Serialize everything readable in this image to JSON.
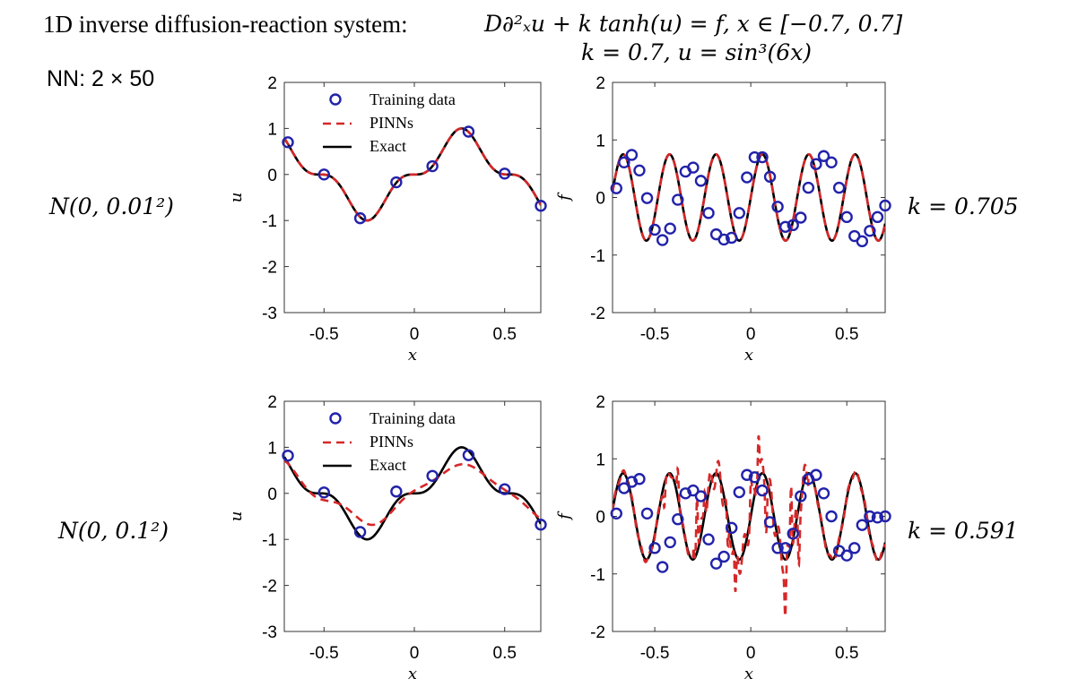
{
  "header": {
    "title": "1D inverse diffusion-reaction system:",
    "equation": "D∂²ₓu + k tanh(u) = f, x ∈ [−0.7, 0.7]",
    "params": "k = 0.7, u = sin³(6x)",
    "network": "NN: 2 × 50"
  },
  "rows": [
    {
      "noise_label": "N(0, 0.01²)",
      "k_result": "k = 0.705"
    },
    {
      "noise_label": "N(0, 0.1²)",
      "k_result": "k = 0.591"
    }
  ],
  "chart_data": [
    {
      "type": "line",
      "id": "u-low-noise",
      "xlabel": "x",
      "ylabel": "u",
      "xlim": [
        -0.72,
        0.7
      ],
      "ylim": [
        -3,
        2
      ],
      "xticks": [
        "-0.5",
        "0",
        "0.5"
      ],
      "yticks": [
        "-3",
        "-2",
        "-1",
        "0",
        "1",
        "2"
      ],
      "legend": [
        "Training data",
        "PINNs",
        "Exact"
      ],
      "legend_position": "top-center",
      "exact": "sin^3(6x)",
      "series": [
        {
          "name": "Training data",
          "x": [
            -0.7,
            -0.5,
            -0.3,
            -0.1,
            0.1,
            0.3,
            0.5,
            0.7
          ],
          "y": [
            0.7,
            0.0,
            -0.95,
            -0.17,
            0.18,
            0.93,
            0.02,
            -0.68
          ]
        }
      ]
    },
    {
      "type": "line",
      "id": "f-low-noise",
      "xlabel": "x",
      "ylabel": "f",
      "xlim": [
        -0.72,
        0.7
      ],
      "ylim": [
        -2,
        2
      ],
      "xticks": [
        "-0.5",
        "0",
        "0.5"
      ],
      "yticks": [
        "-2",
        "-1",
        "0",
        "1",
        "2"
      ],
      "exact": "f(x) ≈ 0.75 sin(26x)",
      "series": [
        {
          "name": "Training data",
          "x": [
            -0.7,
            -0.66,
            -0.62,
            -0.58,
            -0.54,
            -0.5,
            -0.46,
            -0.42,
            -0.38,
            -0.34,
            -0.3,
            -0.26,
            -0.22,
            -0.18,
            -0.14,
            -0.1,
            -0.06,
            -0.02,
            0.02,
            0.06,
            0.1,
            0.14,
            0.18,
            0.22,
            0.26,
            0.3,
            0.34,
            0.38,
            0.42,
            0.46,
            0.5,
            0.54,
            0.58,
            0.62,
            0.66,
            0.7
          ],
          "y": [
            0.16,
            0.61,
            0.74,
            0.47,
            -0.01,
            -0.56,
            -0.74,
            -0.54,
            -0.04,
            0.45,
            0.52,
            0.29,
            -0.27,
            -0.64,
            -0.73,
            -0.7,
            -0.27,
            0.35,
            0.7,
            0.7,
            0.36,
            -0.16,
            -0.51,
            -0.48,
            -0.35,
            0.17,
            0.58,
            0.72,
            0.61,
            0.17,
            -0.34,
            -0.67,
            -0.76,
            -0.58,
            -0.34,
            -0.14
          ]
        }
      ]
    },
    {
      "type": "line",
      "id": "u-high-noise",
      "xlabel": "x",
      "ylabel": "u",
      "xlim": [
        -0.72,
        0.7
      ],
      "ylim": [
        -3,
        2
      ],
      "xticks": [
        "-0.5",
        "0",
        "0.5"
      ],
      "yticks": [
        "-3",
        "-2",
        "-1",
        "0",
        "1",
        "2"
      ],
      "legend": [
        "Training data",
        "PINNs",
        "Exact"
      ],
      "legend_position": "top-center",
      "exact": "sin^3(6x)",
      "series": [
        {
          "name": "Training data",
          "x": [
            -0.7,
            -0.5,
            -0.3,
            -0.1,
            0.1,
            0.3,
            0.5,
            0.7
          ],
          "y": [
            0.82,
            0.02,
            -0.84,
            0.04,
            0.38,
            0.83,
            0.09,
            -0.68
          ]
        }
      ]
    },
    {
      "type": "line",
      "id": "f-high-noise",
      "xlabel": "x",
      "ylabel": "f",
      "xlim": [
        -0.72,
        0.7
      ],
      "ylim": [
        -2,
        2
      ],
      "xticks": [
        "-0.5",
        "0",
        "0.5"
      ],
      "yticks": [
        "-2",
        "-1",
        "0",
        "1",
        "2"
      ],
      "exact": "f(x) ≈ 0.75 sin(26x)",
      "series": [
        {
          "name": "Training data",
          "x": [
            -0.7,
            -0.66,
            -0.62,
            -0.58,
            -0.54,
            -0.5,
            -0.46,
            -0.42,
            -0.38,
            -0.34,
            -0.3,
            -0.26,
            -0.22,
            -0.18,
            -0.14,
            -0.1,
            -0.06,
            -0.02,
            0.02,
            0.06,
            0.1,
            0.14,
            0.18,
            0.22,
            0.26,
            0.3,
            0.34,
            0.38,
            0.42,
            0.46,
            0.5,
            0.54,
            0.58,
            0.62,
            0.66,
            0.7
          ],
          "y": [
            0.05,
            0.49,
            0.6,
            0.65,
            0.05,
            -0.55,
            -0.88,
            -0.45,
            -0.05,
            0.4,
            0.45,
            0.35,
            -0.4,
            -0.82,
            -0.7,
            -0.2,
            0.42,
            0.72,
            0.68,
            0.45,
            -0.1,
            -0.55,
            -0.55,
            -0.3,
            0.35,
            0.65,
            0.72,
            0.4,
            0.0,
            -0.6,
            -0.68,
            -0.55,
            -0.15,
            0.0,
            -0.02,
            0.0
          ]
        }
      ]
    }
  ]
}
